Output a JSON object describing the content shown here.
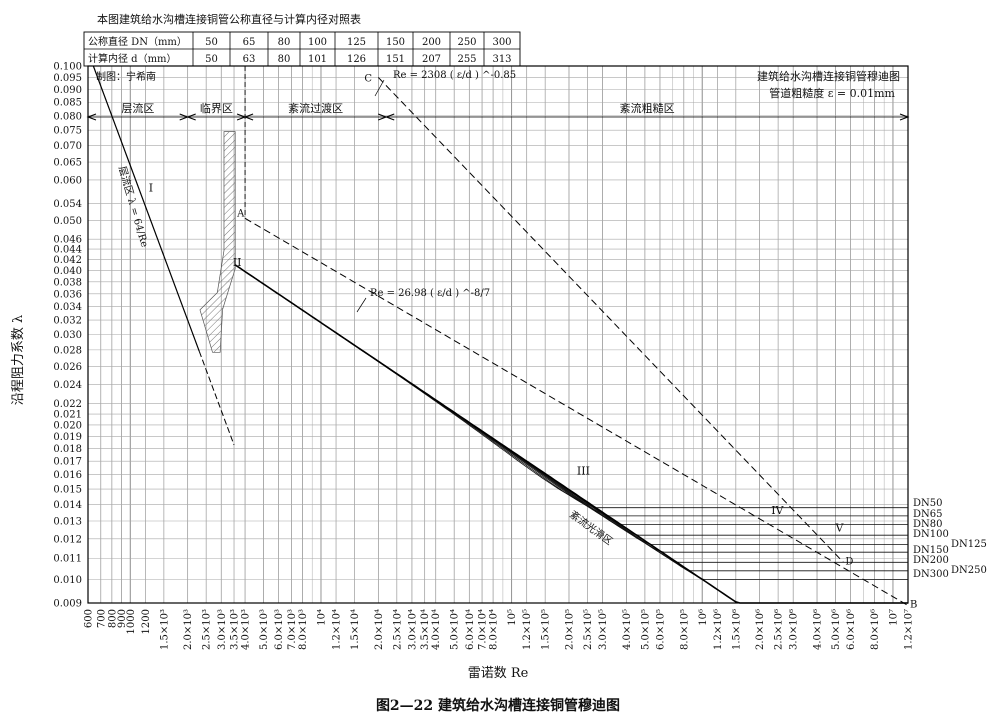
{
  "table": {
    "title": "本图建筑给水沟槽连接铜管公称直径与计算内径对照表",
    "row1_label": "公称直径 DN（mm）",
    "row2_label": "计算内径 d（mm）",
    "dn": [
      "50",
      "65",
      "80",
      "100",
      "125",
      "150",
      "200",
      "250",
      "300"
    ],
    "d": [
      "50",
      "63",
      "80",
      "101",
      "126",
      "151",
      "207",
      "255",
      "313"
    ]
  },
  "chart_data": {
    "type": "line",
    "title": "建筑给水沟槽连接铜管穆迪图",
    "subtitle": "管道粗糙度 ε = 0.01mm",
    "author": "制图：宁希南",
    "caption": "图2—22  建筑给水沟槽连接铜管穆迪图",
    "xlabel": "雷诺数 Re",
    "ylabel": "沿程阻力系数 λ",
    "x_scale": "log",
    "y_scale": "log",
    "xlim": [
      600,
      12000000
    ],
    "ylim": [
      0.009,
      0.1
    ],
    "grid": true,
    "x_tick_labels": [
      {
        "v": 600,
        "t": "600"
      },
      {
        "v": 700,
        "t": "700"
      },
      {
        "v": 800,
        "t": "800"
      },
      {
        "v": 900,
        "t": "900"
      },
      {
        "v": 1000,
        "t": "1000"
      },
      {
        "v": 1200,
        "t": "1200"
      },
      {
        "v": 1500,
        "t": "1.5×10³"
      },
      {
        "v": 2000,
        "t": "2.0×10³"
      },
      {
        "v": 2500,
        "t": "2.5×10³"
      },
      {
        "v": 3000,
        "t": "3.0×10³"
      },
      {
        "v": 3500,
        "t": "3.5×10³"
      },
      {
        "v": 4000,
        "t": "4.0×10³"
      },
      {
        "v": 5000,
        "t": "5.0×10³"
      },
      {
        "v": 6000,
        "t": "6.0×10³"
      },
      {
        "v": 7000,
        "t": "7.0×10³"
      },
      {
        "v": 8000,
        "t": "8.0×10³"
      },
      {
        "v": 10000,
        "t": "10⁴"
      },
      {
        "v": 12000,
        "t": "1.2×10⁴"
      },
      {
        "v": 15000,
        "t": "1.5×10⁴"
      },
      {
        "v": 20000,
        "t": "2.0×10⁴"
      },
      {
        "v": 25000,
        "t": "2.5×10⁴"
      },
      {
        "v": 30000,
        "t": "3.0×10⁴"
      },
      {
        "v": 35000,
        "t": "3.5×10⁴"
      },
      {
        "v": 40000,
        "t": "4.0×10⁴"
      },
      {
        "v": 50000,
        "t": "5.0×10⁴"
      },
      {
        "v": 60000,
        "t": "6.0×10⁴"
      },
      {
        "v": 70000,
        "t": "7.0×10⁴"
      },
      {
        "v": 80000,
        "t": "8.0×10⁴"
      },
      {
        "v": 100000,
        "t": "10⁵"
      },
      {
        "v": 120000,
        "t": "1.2×10⁵"
      },
      {
        "v": 150000,
        "t": "1.5×10⁵"
      },
      {
        "v": 200000,
        "t": "2.0×10⁵"
      },
      {
        "v": 250000,
        "t": "2.5×10⁵"
      },
      {
        "v": 300000,
        "t": "3.0×10⁵"
      },
      {
        "v": 400000,
        "t": "4.0×10⁵"
      },
      {
        "v": 500000,
        "t": "5.0×10⁵"
      },
      {
        "v": 600000,
        "t": "6.0×10⁵"
      },
      {
        "v": 800000,
        "t": "8.0×10⁵"
      },
      {
        "v": 1000000,
        "t": "10⁶"
      },
      {
        "v": 1200000,
        "t": "1.2×10⁶"
      },
      {
        "v": 1500000,
        "t": "1.5×10⁶"
      },
      {
        "v": 2000000,
        "t": "2.0×10⁶"
      },
      {
        "v": 2500000,
        "t": "2.5×10⁶"
      },
      {
        "v": 3000000,
        "t": "3.0×10⁶"
      },
      {
        "v": 4000000,
        "t": "4.0×10⁶"
      },
      {
        "v": 5000000,
        "t": "5.0×10⁶"
      },
      {
        "v": 6000000,
        "t": "6.0×10⁶"
      },
      {
        "v": 8000000,
        "t": "8.0×10⁶"
      },
      {
        "v": 10000000,
        "t": "10⁷"
      },
      {
        "v": 12000000,
        "t": "1.2×10⁷"
      }
    ],
    "y_ticks": [
      0.009,
      0.01,
      0.011,
      0.012,
      0.013,
      0.014,
      0.015,
      0.016,
      0.017,
      0.018,
      0.019,
      0.02,
      0.021,
      0.022,
      0.024,
      0.026,
      0.028,
      0.03,
      0.032,
      0.034,
      0.036,
      0.038,
      0.04,
      0.042,
      0.044,
      0.046,
      0.05,
      0.054,
      0.06,
      0.065,
      0.07,
      0.075,
      0.08,
      0.085,
      0.09,
      0.095,
      0.1
    ],
    "y_tick_labels": [
      "0.009",
      "0.010",
      "0.011",
      "0.012",
      "0.013",
      "0.014",
      "0.015",
      "0.016",
      "0.017",
      "0.018",
      "0.019",
      "0.020",
      "0.021",
      "0.022",
      "0.024",
      "0.026",
      "0.028",
      "0.030",
      "0.032",
      "0.034",
      "0.036",
      "0.038",
      "0.040",
      "0.042",
      "0.044",
      "0.046",
      "0.050",
      "0.054",
      "0.060",
      "0.065",
      "0.070",
      "0.075",
      "0.080",
      "0.085",
      "0.090",
      "0.095",
      "0.100"
    ],
    "zones": [
      {
        "label": "层流区",
        "from": 600,
        "to": 2000
      },
      {
        "label": "临界区",
        "from": 2000,
        "to": 4000
      },
      {
        "label": "紊流过渡区",
        "from": 4000,
        "to": 22000
      },
      {
        "label": "紊流粗糙区",
        "from": 22000,
        "to": 12000000
      }
    ],
    "laminar": {
      "label": "层流区 λ = 64/Re",
      "from": 640,
      "to": 3500
    },
    "critical_band_label": "II",
    "smooth_curve_label": "紊流光滑区",
    "boundary_AB": {
      "label": "Re = 26.98 ( ε/d ) ^-8/7",
      "point_A": "A",
      "point_B": "B",
      "x": [
        4000,
        12000000
      ],
      "y": [
        0.0505,
        0.0089
      ]
    },
    "boundary_CD": {
      "label": "Re = 2308 ( ε/d ) ^-0.85",
      "point_C": "C",
      "point_D": "D",
      "x": [
        20000,
        5500000
      ],
      "y": [
        0.095,
        0.0108
      ]
    },
    "region_labels": [
      {
        "t": "I",
        "x": 1250,
        "y": 0.057
      },
      {
        "t": "II",
        "x": 3450,
        "y": 0.0408
      },
      {
        "t": "III",
        "x": 220000,
        "y": 0.016
      },
      {
        "t": "IV",
        "x": 2300000,
        "y": 0.0134
      },
      {
        "t": "V",
        "x": 5000000,
        "y": 0.0124
      }
    ],
    "series": [
      {
        "name": "DN50",
        "plateau": 0.0138,
        "knee": 300000
      },
      {
        "name": "DN65",
        "plateau": 0.0133,
        "knee": 380000
      },
      {
        "name": "DN80",
        "plateau": 0.0128,
        "knee": 500000
      },
      {
        "name": "DN100",
        "plateau": 0.0122,
        "knee": 650000
      },
      {
        "name": "DN125",
        "plateau": 0.0117,
        "knee": 820000
      },
      {
        "name": "DN150",
        "plateau": 0.0113,
        "knee": 1000000
      },
      {
        "name": "DN200",
        "plateau": 0.0108,
        "knee": 1400000
      },
      {
        "name": "DN250",
        "plateau": 0.0104,
        "knee": 1800000
      },
      {
        "name": "DN300",
        "plateau": 0.01,
        "knee": 2300000
      }
    ]
  }
}
